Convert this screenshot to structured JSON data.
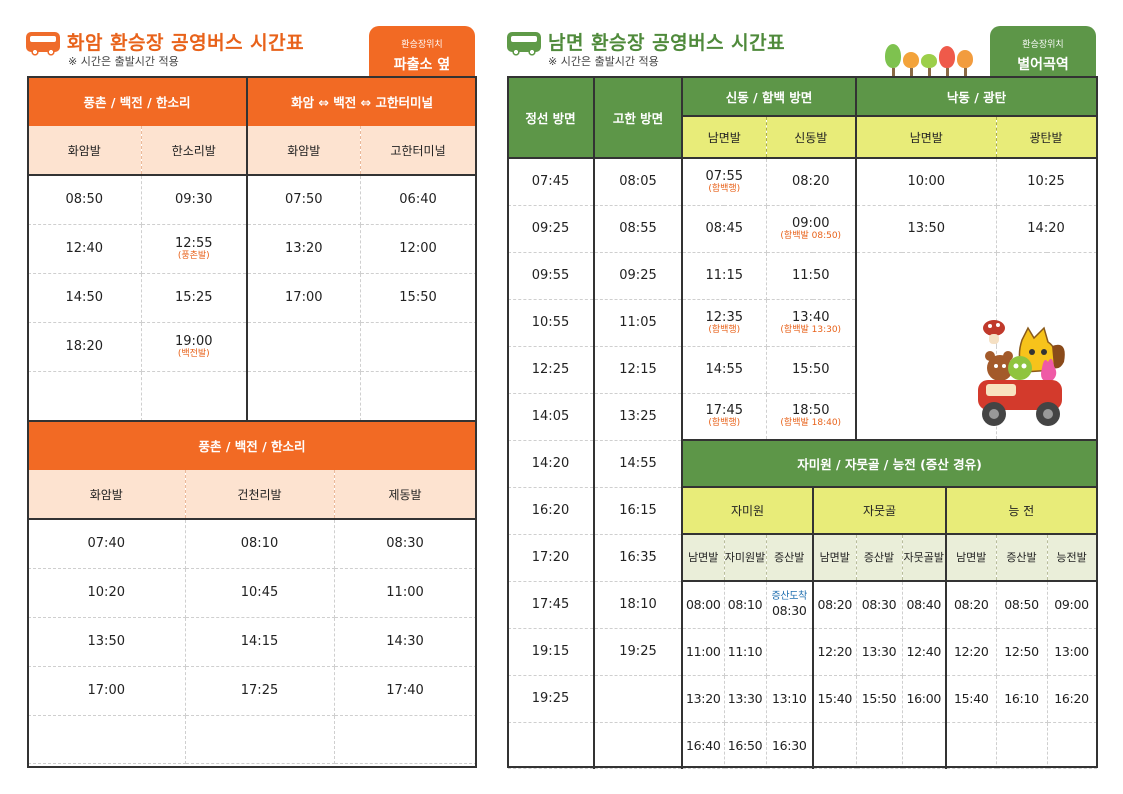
{
  "left": {
    "title": "화암 환승장 공영버스 시간표",
    "note": "※ 시간은 출발시간 적용",
    "badge": {
      "small": "환승장위치",
      "big": "파출소 옆"
    },
    "table1": {
      "group1": "풍촌 / 백전 / 한소리",
      "group2": "화암 ⇔ 백전 ⇔ 고한터미널",
      "cols": [
        "화암발",
        "한소리발",
        "화암발",
        "고한터미널"
      ],
      "rows": [
        [
          "08:50",
          "09:30",
          "",
          "07:50",
          "06:40"
        ],
        [
          "12:40",
          "12:55",
          "(풍촌발)",
          "13:20",
          "12:00"
        ],
        [
          "14:50",
          "15:25",
          "",
          "17:00",
          "15:50"
        ],
        [
          "18:20",
          "19:00",
          "(백전발)",
          "",
          ""
        ],
        [
          "",
          "",
          "",
          "",
          ""
        ]
      ]
    },
    "table2": {
      "group": "풍촌 / 백전 / 한소리",
      "cols": [
        "화암발",
        "건천리발",
        "제동발"
      ],
      "rows": [
        [
          "07:40",
          "08:10",
          "08:30"
        ],
        [
          "10:20",
          "10:45",
          "11:00"
        ],
        [
          "13:50",
          "14:15",
          "14:30"
        ],
        [
          "17:00",
          "17:25",
          "17:40"
        ],
        [
          "",
          "",
          ""
        ]
      ]
    }
  },
  "right": {
    "title": "남면 환승장 공영버스 시간표",
    "note": "※ 시간은 출발시간 적용",
    "badge": {
      "small": "환승장위치",
      "big": "별어곡역"
    },
    "headers": {
      "jeongseon": "정선 방면",
      "gohan": "고한 방면",
      "sindong_group": "신동 / 함백 방면",
      "nakdong_group": "낙동 / 광탄",
      "sub": [
        "남면발",
        "신동발",
        "남면발",
        "광탄발"
      ]
    },
    "left_cols": [
      [
        "07:45",
        "08:05"
      ],
      [
        "09:25",
        "08:55"
      ],
      [
        "09:55",
        "09:25"
      ],
      [
        "10:55",
        "11:05"
      ],
      [
        "12:25",
        "12:15"
      ],
      [
        "14:05",
        "13:25"
      ],
      [
        "14:20",
        "14:55"
      ],
      [
        "16:20",
        "16:15"
      ],
      [
        "17:20",
        "16:35"
      ],
      [
        "17:45",
        "18:10"
      ],
      [
        "19:15",
        "19:25"
      ],
      [
        "19:25",
        ""
      ],
      [
        "",
        ""
      ]
    ],
    "sindong_rows": [
      [
        "07:55",
        "(함백행)",
        "08:20",
        ""
      ],
      [
        "08:45",
        "",
        "09:00",
        "(함백발 08:50)"
      ],
      [
        "11:15",
        "",
        "11:50",
        ""
      ],
      [
        "12:35",
        "(함백행)",
        "13:40",
        "(함백발 13:30)"
      ],
      [
        "14:55",
        "",
        "15:50",
        ""
      ],
      [
        "17:45",
        "(함백행)",
        "18:50",
        "(함백발 18:40)"
      ]
    ],
    "nakdong_rows": [
      [
        "10:00",
        "10:25"
      ],
      [
        "13:50",
        "14:20"
      ]
    ],
    "jamiwon_group": "자미원 / 자뭇골 / 능전 (증산 경유)",
    "sub_groups": [
      "자미원",
      "자뭇골",
      "능 전"
    ],
    "sub_cols": [
      "남면발",
      "자미원발",
      "증산발",
      "남면발",
      "증산발",
      "자뭇골발",
      "남면발",
      "증산발",
      "능전발"
    ],
    "jamiwon_rows": [
      [
        "08:00",
        "08:10",
        "증산도착",
        "08:30",
        "08:20",
        "08:30",
        "08:40",
        "08:20",
        "08:50",
        "09:00"
      ],
      [
        "11:00",
        "11:10",
        "",
        "",
        "12:20",
        "13:30",
        "12:40",
        "12:20",
        "12:50",
        "13:00"
      ],
      [
        "13:20",
        "13:30",
        "",
        "13:10",
        "15:40",
        "15:50",
        "16:00",
        "15:40",
        "16:10",
        "16:20"
      ],
      [
        "16:40",
        "16:50",
        "",
        "16:30",
        "",
        "",
        "",
        "",
        "",
        ""
      ]
    ],
    "colors": {
      "green": "#5d9648",
      "yellow": "#e8ec79",
      "orange": "#f26a24"
    }
  }
}
